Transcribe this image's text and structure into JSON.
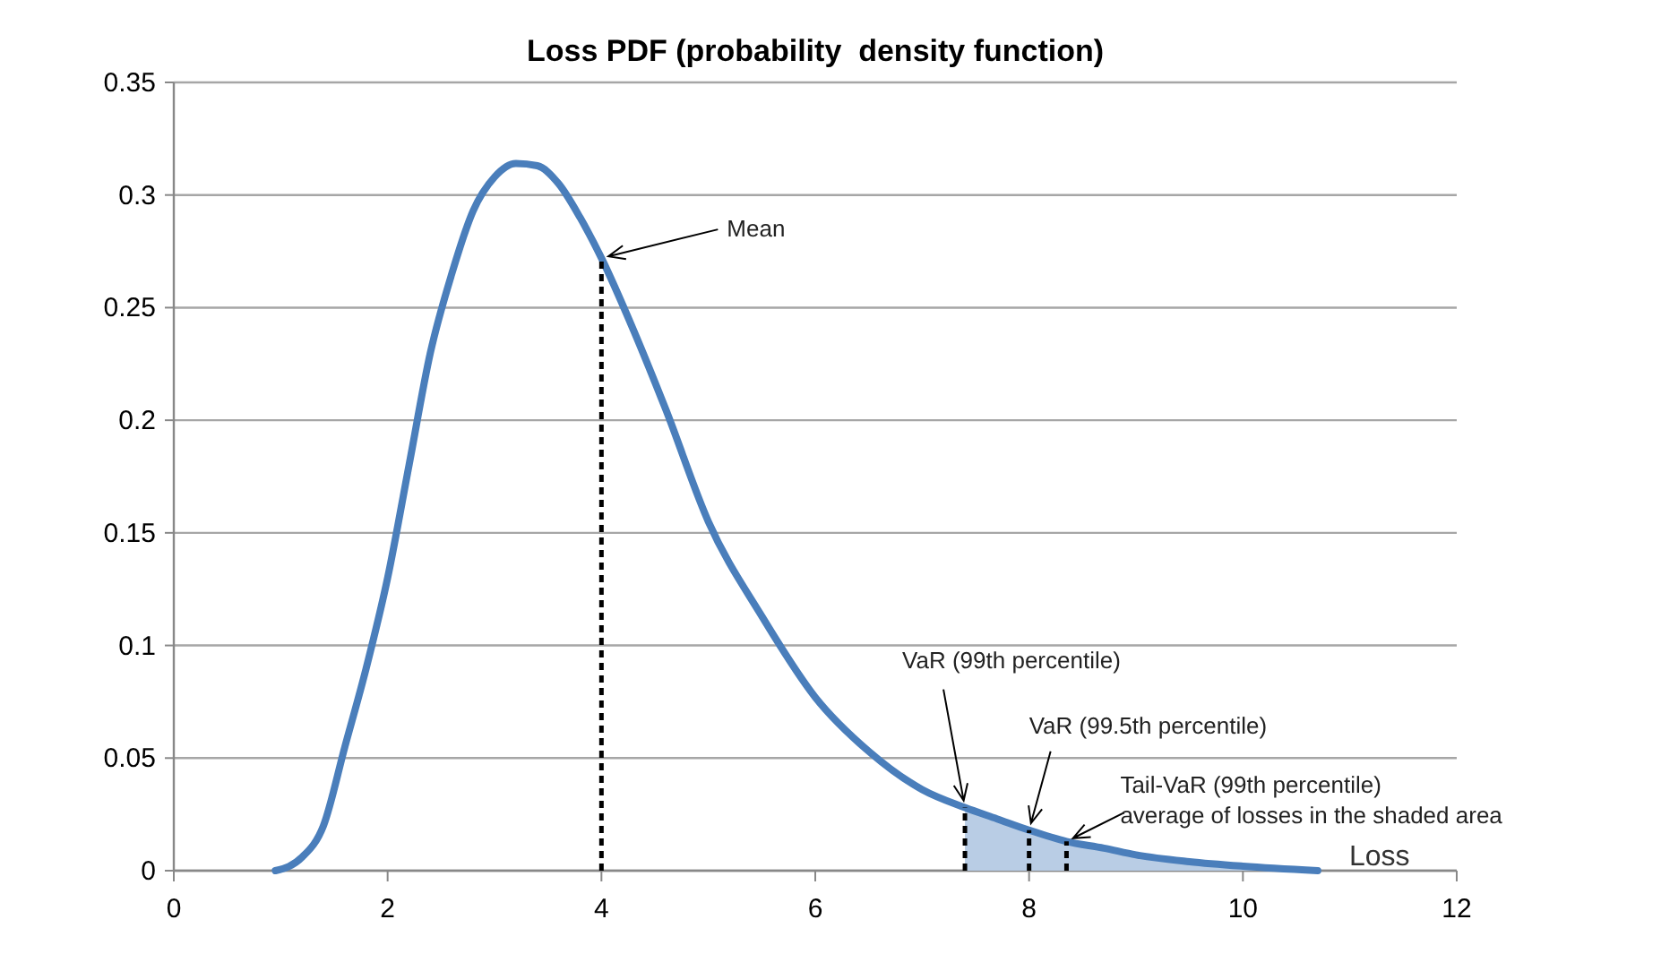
{
  "chart_data": {
    "type": "line",
    "title": "Loss PDF (probability  density function)",
    "xlabel": "Loss",
    "xlim": [
      0,
      12
    ],
    "xticks": [
      0,
      2,
      4,
      6,
      8,
      10,
      12
    ],
    "ylim": [
      0,
      0.35
    ],
    "yticks": [
      0,
      0.05,
      0.1,
      0.15,
      0.2,
      0.25,
      0.3,
      0.35
    ],
    "grid": "y",
    "marker": "none",
    "series": [
      {
        "type": "area",
        "color": "#b9cde5",
        "x": [
          7.4,
          7.7,
          8.0,
          8.35,
          8.7,
          9.0,
          9.5,
          10.0,
          10.7
        ],
        "values": [
          0.028,
          0.023,
          0.018,
          0.013,
          0.01,
          0.007,
          0.004,
          0.002,
          0
        ]
      },
      {
        "color": "#4a7ebb",
        "line_style": "solid",
        "x": [
          0.95,
          1.2,
          1.4,
          1.6,
          1.8,
          2.0,
          2.2,
          2.4,
          2.6,
          2.8,
          3.0,
          3.2,
          3.4,
          3.6,
          3.8,
          4.0,
          4.3,
          4.6,
          5.0,
          5.5,
          6.0,
          6.5,
          7.0,
          7.4,
          7.7,
          8.0,
          8.35,
          8.7,
          9.0,
          9.5,
          10.0,
          10.7
        ],
        "values": [
          0,
          0.006,
          0.02,
          0.055,
          0.09,
          0.13,
          0.18,
          0.23,
          0.265,
          0.293,
          0.308,
          0.314,
          0.313,
          0.305,
          0.29,
          0.272,
          0.24,
          0.205,
          0.155,
          0.113,
          0.077,
          0.053,
          0.036,
          0.028,
          0.023,
          0.018,
          0.013,
          0.01,
          0.007,
          0.004,
          0.002,
          0
        ]
      },
      {
        "color": "#000000",
        "line_style": "dashed",
        "x": [
          4,
          4
        ],
        "values": [
          0,
          0.272
        ]
      },
      {
        "color": "#000000",
        "line_style": "dashed",
        "x": [
          7.4,
          7.4
        ],
        "values": [
          0,
          0.028
        ]
      },
      {
        "color": "#000000",
        "line_style": "dashed",
        "x": [
          8,
          8
        ],
        "values": [
          0,
          0.018
        ]
      },
      {
        "color": "#000000",
        "line_style": "dashed",
        "x": [
          8.35,
          8.35
        ],
        "values": [
          0,
          0.013
        ]
      }
    ],
    "annotations": [
      {
        "text": "Mean",
        "x": 4,
        "y": 0.272
      },
      {
        "text": "VaR (99th percentile)",
        "x": 7.4,
        "y": 0.028
      },
      {
        "text": "VaR (99.5th percentile)",
        "x": 8,
        "y": 0.018
      },
      {
        "text": "Tail-VaR (99th percentile)\naverage of losses in the shaded area",
        "x": 8.35,
        "y": 0.013
      }
    ]
  }
}
